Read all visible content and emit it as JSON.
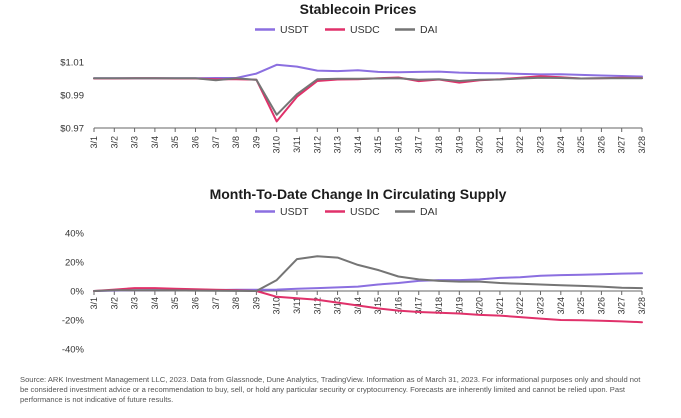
{
  "footer_text": "Source: ARK Investment Management LLC, 2023. Data from Glassnode, Dune Analytics, TradingView. Information as of March 31, 2023. For informational purposes only and should not be considered investment advice or a recommendation to buy, sell, or hold any particular security or cryptocurrency. Forecasts are inherently limited and cannot be relied upon. Past performance is not indicative of future results.",
  "chart_data": [
    {
      "type": "line",
      "title": "Stablecoin Prices",
      "xlabel": "",
      "ylabel": "",
      "ylim": [
        0.97,
        1.01
      ],
      "yticks": [
        0.97,
        0.99,
        1.01
      ],
      "ytick_labels": [
        "$0.97",
        "$0.99",
        "$1.01"
      ],
      "legend_position": "top",
      "grid": false,
      "categories": [
        "3/1",
        "3/2",
        "3/3",
        "3/4",
        "3/5",
        "3/6",
        "3/7",
        "3/8",
        "3/9",
        "3/10",
        "3/11",
        "3/12",
        "3/13",
        "3/14",
        "3/15",
        "3/16",
        "3/17",
        "3/18",
        "3/19",
        "3/20",
        "3/21",
        "3/22",
        "3/23",
        "3/24",
        "3/25",
        "3/26",
        "3/27",
        "3/28"
      ],
      "series": [
        {
          "name": "USDT",
          "color": "#8b6fe0",
          "values": [
            1.0001,
            1.0001,
            1.0002,
            1.0002,
            1.0001,
            1.0002,
            1.0003,
            1.0003,
            1.003,
            1.0083,
            1.0072,
            1.0048,
            1.0045,
            1.005,
            1.004,
            1.0038,
            1.004,
            1.0042,
            1.0036,
            1.0033,
            1.0032,
            1.0028,
            1.0025,
            1.0026,
            1.0022,
            1.0018,
            1.0015,
            1.0012
          ]
        },
        {
          "name": "USDC",
          "color": "#e0316a",
          "values": [
            1.0,
            1.0,
            1.0001,
            1.0001,
            1.0,
            1.0,
            0.9995,
            0.9996,
            0.9993,
            0.974,
            0.989,
            0.9985,
            0.9994,
            0.9996,
            1.0001,
            1.0006,
            0.9984,
            0.9994,
            0.9975,
            0.999,
            0.9996,
            1.0005,
            1.0014,
            1.0008,
            1.0,
            1.0002,
            1.0004,
            1.0003
          ]
        },
        {
          "name": "DAI",
          "color": "#757575",
          "values": [
            1.0002,
            1.0002,
            1.0001,
            1.0001,
            1.0001,
            1.0001,
            0.999,
            1.0001,
            0.9992,
            0.978,
            0.9905,
            0.9995,
            0.9998,
            0.9999,
            1.0,
            1.0002,
            0.9993,
            0.9996,
            0.9985,
            0.9992,
            0.9994,
            1.0,
            1.0005,
            1.0003,
            1.0,
            1.0001,
            1.0002,
            1.0001
          ]
        }
      ]
    },
    {
      "type": "line",
      "title": "Month-To-Date Change In Circulating Supply",
      "xlabel": "",
      "ylabel": "",
      "ylim": [
        -40,
        40
      ],
      "yticks": [
        -40,
        -20,
        0,
        20,
        40
      ],
      "ytick_labels": [
        "-40%",
        "-20%",
        "0%",
        "20%",
        "40%"
      ],
      "legend_position": "top",
      "grid": false,
      "categories": [
        "3/1",
        "3/2",
        "3/3",
        "3/4",
        "3/5",
        "3/6",
        "3/7",
        "3/8",
        "3/9",
        "3/10",
        "3/11",
        "3/12",
        "3/13",
        "3/14",
        "3/15",
        "3/16",
        "3/17",
        "3/18",
        "3/19",
        "3/20",
        "3/21",
        "3/22",
        "3/23",
        "3/24",
        "3/25",
        "3/26",
        "3/27",
        "3/28"
      ],
      "series": [
        {
          "name": "USDT",
          "color": "#8b6fe0",
          "values": [
            0,
            0.3,
            0.5,
            0.6,
            0.6,
            0.6,
            0.7,
            0.8,
            0.9,
            1.0,
            1.5,
            2.0,
            2.5,
            3.0,
            4.5,
            5.5,
            7.0,
            7.5,
            7.5,
            8.0,
            9.0,
            9.5,
            10.5,
            11.0,
            11.2,
            11.5,
            12.0,
            12.2
          ]
        },
        {
          "name": "USDC",
          "color": "#e0316a",
          "values": [
            0,
            1.0,
            2.0,
            2.0,
            1.5,
            1.2,
            0.8,
            0.5,
            0,
            -4.0,
            -5.0,
            -6.0,
            -8.0,
            -10.0,
            -12.0,
            -13.5,
            -14.5,
            -15.0,
            -15.5,
            -16.5,
            -17.0,
            -18.0,
            -19.0,
            -20.0,
            -20.2,
            -20.5,
            -21.0,
            -21.5
          ]
        },
        {
          "name": "DAI",
          "color": "#757575",
          "values": [
            0,
            0.5,
            0.5,
            0.5,
            0.4,
            0.3,
            0.2,
            0.1,
            0,
            7.5,
            22.0,
            24.0,
            23.0,
            18.0,
            14.5,
            10.0,
            8.0,
            7.0,
            6.5,
            6.5,
            5.5,
            5.0,
            4.5,
            4.0,
            3.5,
            3.0,
            2.2,
            2.0
          ]
        }
      ]
    }
  ]
}
